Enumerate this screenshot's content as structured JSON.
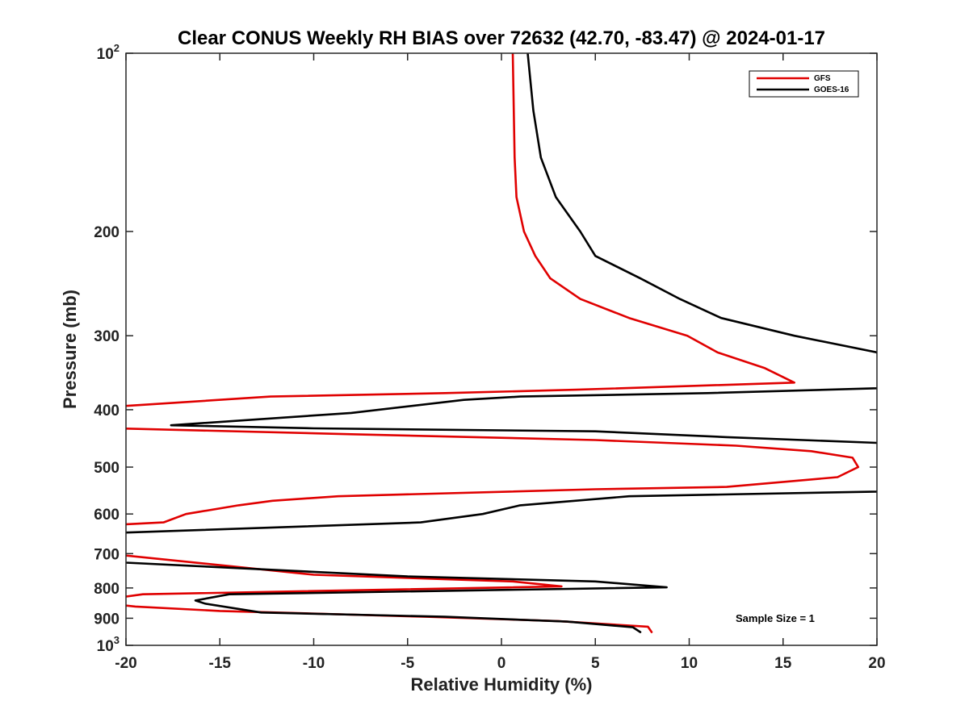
{
  "chart_data": {
    "type": "line",
    "title": "Clear CONUS Weekly RH BIAS over 72632 (42.70, -83.47) @ 2024-01-17",
    "xlabel": "Relative Humidity (%)",
    "ylabel": "Pressure (mb)",
    "xlim": [
      -20,
      20
    ],
    "ylim": [
      100,
      1000
    ],
    "y_scale": "log",
    "y_reversed": true,
    "x_ticks": [
      -20,
      -15,
      -10,
      -5,
      0,
      5,
      10,
      15,
      20
    ],
    "x_tick_labels": [
      "-20",
      "-15",
      "-10",
      "-5",
      "0",
      "5",
      "10",
      "15",
      "20"
    ],
    "y_ticks": [
      100,
      200,
      300,
      400,
      500,
      600,
      700,
      800,
      900,
      1000
    ],
    "y_tick_labels": [
      {
        "base": "10",
        "exp": "2"
      },
      {
        "base": "200",
        "exp": ""
      },
      {
        "base": "300",
        "exp": ""
      },
      {
        "base": "400",
        "exp": ""
      },
      {
        "base": "500",
        "exp": ""
      },
      {
        "base": "600",
        "exp": ""
      },
      {
        "base": "700",
        "exp": ""
      },
      {
        "base": "800",
        "exp": ""
      },
      {
        "base": "900",
        "exp": ""
      },
      {
        "base": "10",
        "exp": "3"
      }
    ],
    "grid": false,
    "legend_position": "top-right",
    "annotation": "Sample Size = 1",
    "series": [
      {
        "name": "GFS",
        "color": "#e00000",
        "points": [
          [
            0.6,
            100
          ],
          [
            0.7,
            150
          ],
          [
            0.8,
            175
          ],
          [
            1.2,
            200
          ],
          [
            1.8,
            220
          ],
          [
            2.6,
            240
          ],
          [
            4.2,
            260
          ],
          [
            6.8,
            280
          ],
          [
            9.9,
            300
          ],
          [
            11.5,
            320
          ],
          [
            14.0,
            340
          ],
          [
            15.6,
            360
          ],
          [
            4.0,
            370
          ],
          [
            -3.0,
            375
          ],
          [
            -12.3,
            380
          ],
          [
            -20.5,
            395
          ],
          [
            -22.0,
            425
          ],
          [
            -20.5,
            430
          ],
          [
            -8.0,
            440
          ],
          [
            5.0,
            450
          ],
          [
            12.5,
            460
          ],
          [
            16.5,
            470
          ],
          [
            18.7,
            482
          ],
          [
            19.0,
            500
          ],
          [
            17.9,
            520
          ],
          [
            12.0,
            540
          ],
          [
            5.0,
            545
          ],
          [
            -8.7,
            560
          ],
          [
            -12.2,
            570
          ],
          [
            -14.0,
            580
          ],
          [
            -16.8,
            600
          ],
          [
            -18.0,
            620
          ],
          [
            -20.2,
            625
          ],
          [
            -21.0,
            700
          ],
          [
            -10.0,
            760
          ],
          [
            0.6,
            780
          ],
          [
            3.2,
            795
          ],
          [
            -19.1,
            820
          ],
          [
            -20.3,
            830
          ],
          [
            -21.0,
            850
          ],
          [
            -19.5,
            860
          ],
          [
            -15.0,
            875
          ],
          [
            -12.0,
            880
          ],
          [
            -4.0,
            895
          ],
          [
            3.0,
            910
          ],
          [
            7.8,
            930
          ],
          [
            8.0,
            950
          ]
        ]
      },
      {
        "name": "GOES-16",
        "color": "#000000",
        "points": [
          [
            1.4,
            100
          ],
          [
            1.7,
            125
          ],
          [
            2.1,
            150
          ],
          [
            2.9,
            175
          ],
          [
            4.2,
            200
          ],
          [
            5.0,
            220
          ],
          [
            7.4,
            240
          ],
          [
            9.5,
            260
          ],
          [
            11.7,
            280
          ],
          [
            15.6,
            300
          ],
          [
            20.0,
            320
          ],
          [
            20.5,
            350
          ],
          [
            20.0,
            368
          ],
          [
            11.0,
            375
          ],
          [
            1.0,
            380
          ],
          [
            -2.0,
            385
          ],
          [
            -8.0,
            405
          ],
          [
            -17.6,
            425
          ],
          [
            -10.0,
            430
          ],
          [
            5.0,
            435
          ],
          [
            12.0,
            445
          ],
          [
            20.0,
            455
          ],
          [
            21.0,
            500
          ],
          [
            20.0,
            550
          ],
          [
            6.8,
            560
          ],
          [
            1.0,
            580
          ],
          [
            -1.0,
            600
          ],
          [
            -4.3,
            620
          ],
          [
            -20.0,
            645
          ],
          [
            -21.0,
            700
          ],
          [
            -20.0,
            725
          ],
          [
            -5.0,
            765
          ],
          [
            5.0,
            780
          ],
          [
            8.8,
            798
          ],
          [
            -14.5,
            820
          ],
          [
            -16.3,
            840
          ],
          [
            -15.8,
            850
          ],
          [
            -12.8,
            880
          ],
          [
            -3.0,
            895
          ],
          [
            3.5,
            912
          ],
          [
            7.0,
            932
          ],
          [
            7.4,
            950
          ]
        ]
      }
    ]
  }
}
